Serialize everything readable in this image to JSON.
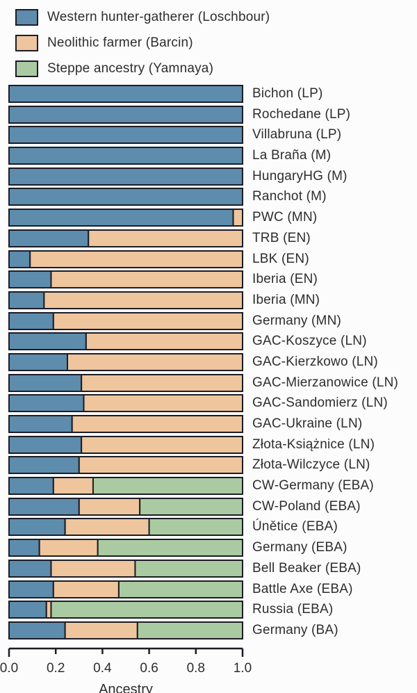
{
  "chart_data": {
    "type": "bar",
    "orientation": "horizontal",
    "stacked": true,
    "title": "",
    "xlabel": "Ancestry",
    "ylabel": "",
    "xlim": [
      0.0,
      1.0
    ],
    "x_ticks": [
      0.0,
      0.2,
      0.4,
      0.6,
      0.8,
      1.0
    ],
    "x_tick_labels": [
      "0.0",
      "0.2",
      "0.4",
      "0.6",
      "0.8",
      "1.0"
    ],
    "grid": false,
    "legend_position": "top-left",
    "bar_border_color": "#1c1c26",
    "text_color": "#2d2d2d",
    "background_color": "#fcfcfc",
    "categories": [
      "Bichon (LP)",
      "Rochedane (LP)",
      "Villabruna (LP)",
      "La Braña (M)",
      "HungaryHG (M)",
      "Ranchot (M)",
      "PWC (MN)",
      "TRB (EN)",
      "LBK (EN)",
      "Iberia (EN)",
      "Iberia (MN)",
      "Germany (MN)",
      "GAC-Koszyce (LN)",
      "GAC-Kierzkowo (LN)",
      "GAC-Mierzanowice (LN)",
      "GAC-Sandomierz (LN)",
      "GAC-Ukraine (LN)",
      "Złota-Książnice (LN)",
      "Złota-Wilczyce (LN)",
      "CW-Germany (EBA)",
      "CW-Poland (EBA)",
      "Únětice (EBA)",
      "Germany (EBA)",
      "Bell Beaker (EBA)",
      "Battle Axe (EBA)",
      "Russia (EBA)",
      "Germany (BA)"
    ],
    "series": [
      {
        "name": "Western hunter-gatherer (Loschbour)",
        "color": "#5d8cac",
        "values": [
          1.0,
          1.0,
          1.0,
          1.0,
          1.0,
          1.0,
          0.96,
          0.34,
          0.09,
          0.18,
          0.15,
          0.19,
          0.33,
          0.25,
          0.31,
          0.32,
          0.27,
          0.31,
          0.3,
          0.19,
          0.3,
          0.24,
          0.13,
          0.18,
          0.19,
          0.16,
          0.24
        ]
      },
      {
        "name": "Neolithic farmer (Barcin)",
        "color": "#eec59c",
        "values": [
          0,
          0,
          0,
          0,
          0,
          0,
          0.04,
          0.66,
          0.91,
          0.82,
          0.85,
          0.81,
          0.67,
          0.75,
          0.69,
          0.68,
          0.73,
          0.69,
          0.7,
          0.17,
          0.26,
          0.36,
          0.25,
          0.36,
          0.28,
          0.02,
          0.31
        ]
      },
      {
        "name": "Steppe ancestry (Yamnaya)",
        "color": "#aacba2",
        "values": [
          0,
          0,
          0,
          0,
          0,
          0,
          0,
          0,
          0,
          0,
          0,
          0,
          0,
          0,
          0,
          0,
          0,
          0,
          0,
          0.64,
          0.44,
          0.4,
          0.62,
          0.46,
          0.53,
          0.82,
          0.45
        ]
      }
    ]
  }
}
